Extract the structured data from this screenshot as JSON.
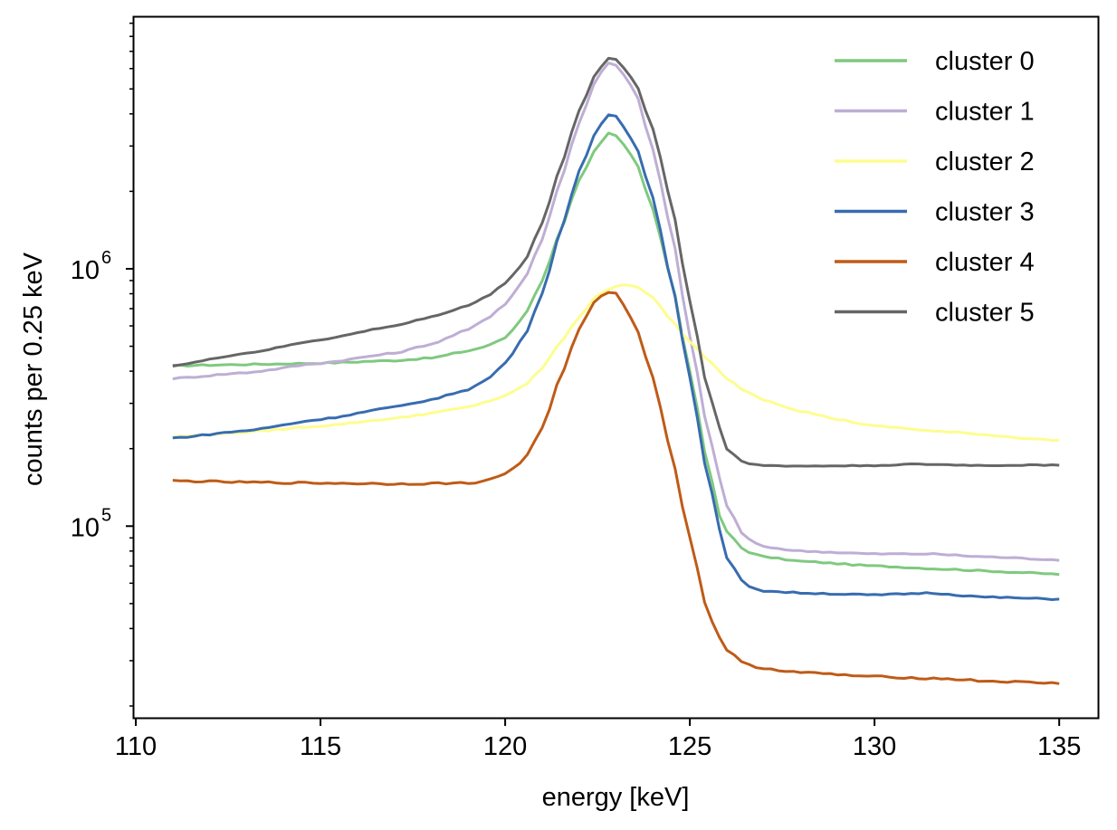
{
  "chart_data": {
    "type": "line",
    "title": "",
    "xlabel": "energy [keV]",
    "ylabel": "counts per 0.25 keV",
    "yscale": "log",
    "xlim": [
      109.95,
      136.05
    ],
    "ylim": [
      18000,
      9500000
    ],
    "xticks": [
      110,
      115,
      120,
      125,
      130,
      135
    ],
    "xtick_labels": [
      "110",
      "115",
      "120",
      "125",
      "130",
      "135"
    ],
    "yticks": [
      100000,
      1000000
    ],
    "ytick_labels": [
      {
        "base": "10",
        "exp": "5"
      },
      {
        "base": "10",
        "exp": "6"
      }
    ],
    "legend_position": "top-right",
    "grid": false,
    "series": [
      {
        "name": "cluster 0",
        "color": "#7fc97f",
        "knots": [
          [
            111,
            420000
          ],
          [
            113,
            425000
          ],
          [
            115,
            430000
          ],
          [
            117,
            440000
          ],
          [
            118,
            450000
          ],
          [
            119,
            480000
          ],
          [
            119.5,
            500000
          ],
          [
            120,
            540000
          ],
          [
            120.5,
            650000
          ],
          [
            121,
            900000
          ],
          [
            121.5,
            1400000
          ],
          [
            122,
            2200000
          ],
          [
            122.5,
            3000000
          ],
          [
            122.8,
            3350000
          ],
          [
            123,
            3300000
          ],
          [
            123.5,
            2700000
          ],
          [
            124,
            1700000
          ],
          [
            124.5,
            900000
          ],
          [
            125,
            400000
          ],
          [
            125.5,
            170000
          ],
          [
            125.8,
            110000
          ],
          [
            126,
            95000
          ],
          [
            126.5,
            80000
          ],
          [
            127,
            76000
          ],
          [
            128,
            73000
          ],
          [
            130,
            70000
          ],
          [
            132,
            68000
          ],
          [
            133,
            67000
          ],
          [
            134,
            66000
          ],
          [
            135,
            65000
          ]
        ],
        "noise": 0.006
      },
      {
        "name": "cluster 1",
        "color": "#beaed4",
        "knots": [
          [
            111,
            375000
          ],
          [
            113,
            395000
          ],
          [
            115,
            430000
          ],
          [
            117,
            470000
          ],
          [
            118,
            510000
          ],
          [
            119,
            580000
          ],
          [
            119.5,
            640000
          ],
          [
            120,
            730000
          ],
          [
            120.5,
            900000
          ],
          [
            121,
            1300000
          ],
          [
            121.5,
            2200000
          ],
          [
            122,
            3700000
          ],
          [
            122.5,
            5600000
          ],
          [
            122.8,
            6300000
          ],
          [
            123,
            6200000
          ],
          [
            123.5,
            5000000
          ],
          [
            124,
            2900000
          ],
          [
            124.5,
            1400000
          ],
          [
            125,
            550000
          ],
          [
            125.5,
            230000
          ],
          [
            126,
            120000
          ],
          [
            126.5,
            90000
          ],
          [
            127,
            83000
          ],
          [
            128,
            80000
          ],
          [
            130,
            78000
          ],
          [
            131.5,
            78000
          ],
          [
            133,
            76000
          ],
          [
            135,
            74000
          ]
        ],
        "noise": 0.006
      },
      {
        "name": "cluster 2",
        "color": "#fdfd8f",
        "knots": [
          [
            111,
            222000
          ],
          [
            113,
            232000
          ],
          [
            115,
            245000
          ],
          [
            117,
            262000
          ],
          [
            118,
            275000
          ],
          [
            119,
            290000
          ],
          [
            119.5,
            305000
          ],
          [
            120,
            320000
          ],
          [
            120.5,
            350000
          ],
          [
            121,
            410000
          ],
          [
            121.5,
            520000
          ],
          [
            122,
            650000
          ],
          [
            122.5,
            790000
          ],
          [
            123,
            860000
          ],
          [
            123.3,
            870000
          ],
          [
            123.6,
            850000
          ],
          [
            124,
            770000
          ],
          [
            124.5,
            630000
          ],
          [
            125,
            520000
          ],
          [
            125.5,
            440000
          ],
          [
            126,
            375000
          ],
          [
            126.5,
            335000
          ],
          [
            127,
            310000
          ],
          [
            128,
            280000
          ],
          [
            129,
            260000
          ],
          [
            130,
            245000
          ],
          [
            132,
            232000
          ],
          [
            135,
            215000
          ]
        ],
        "noise": 0.006
      },
      {
        "name": "cluster 3",
        "color": "#386cb0",
        "knots": [
          [
            111,
            220000
          ],
          [
            113,
            235000
          ],
          [
            115,
            260000
          ],
          [
            117,
            290000
          ],
          [
            118,
            310000
          ],
          [
            119,
            340000
          ],
          [
            119.5,
            370000
          ],
          [
            120,
            430000
          ],
          [
            120.5,
            540000
          ],
          [
            121,
            800000
          ],
          [
            121.5,
            1400000
          ],
          [
            122,
            2400000
          ],
          [
            122.5,
            3500000
          ],
          [
            122.8,
            3950000
          ],
          [
            123,
            3900000
          ],
          [
            123.5,
            3100000
          ],
          [
            124,
            1900000
          ],
          [
            124.5,
            900000
          ],
          [
            125,
            380000
          ],
          [
            125.5,
            150000
          ],
          [
            126,
            75000
          ],
          [
            126.5,
            59000
          ],
          [
            127,
            56000
          ],
          [
            128,
            55000
          ],
          [
            130,
            54000
          ],
          [
            131.5,
            55000
          ],
          [
            133,
            53000
          ],
          [
            135,
            52000
          ]
        ],
        "noise": 0.006
      },
      {
        "name": "cluster 4",
        "color": "#bf5b17",
        "knots": [
          [
            111,
            150000
          ],
          [
            113,
            148000
          ],
          [
            115,
            147000
          ],
          [
            117,
            146000
          ],
          [
            119,
            147000
          ],
          [
            119.5,
            150000
          ],
          [
            120,
            160000
          ],
          [
            120.5,
            180000
          ],
          [
            121,
            240000
          ],
          [
            121.5,
            380000
          ],
          [
            122,
            580000
          ],
          [
            122.5,
            780000
          ],
          [
            122.8,
            810000
          ],
          [
            123,
            800000
          ],
          [
            123.5,
            620000
          ],
          [
            124,
            380000
          ],
          [
            124.5,
            190000
          ],
          [
            125,
            90000
          ],
          [
            125.5,
            45000
          ],
          [
            126,
            33000
          ],
          [
            126.5,
            29000
          ],
          [
            127,
            28000
          ],
          [
            128,
            27000
          ],
          [
            130,
            26000
          ],
          [
            132,
            25500
          ],
          [
            133,
            25000
          ],
          [
            135,
            24500
          ]
        ],
        "noise": 0.008
      },
      {
        "name": "cluster 5",
        "color": "#666666",
        "knots": [
          [
            111,
            420000
          ],
          [
            113,
            470000
          ],
          [
            115,
            530000
          ],
          [
            117,
            600000
          ],
          [
            118,
            650000
          ],
          [
            119,
            720000
          ],
          [
            119.5,
            780000
          ],
          [
            120,
            880000
          ],
          [
            120.5,
            1050000
          ],
          [
            121,
            1500000
          ],
          [
            121.5,
            2500000
          ],
          [
            122,
            4100000
          ],
          [
            122.5,
            5900000
          ],
          [
            122.8,
            6600000
          ],
          [
            123,
            6500000
          ],
          [
            123.5,
            5400000
          ],
          [
            124,
            3500000
          ],
          [
            124.5,
            1800000
          ],
          [
            125,
            750000
          ],
          [
            125.5,
            330000
          ],
          [
            126,
            200000
          ],
          [
            126.5,
            175000
          ],
          [
            127,
            172000
          ],
          [
            128,
            171000
          ],
          [
            130,
            172000
          ],
          [
            131,
            174000
          ],
          [
            133,
            172000
          ],
          [
            135,
            173000
          ]
        ],
        "noise": 0.004
      }
    ]
  }
}
